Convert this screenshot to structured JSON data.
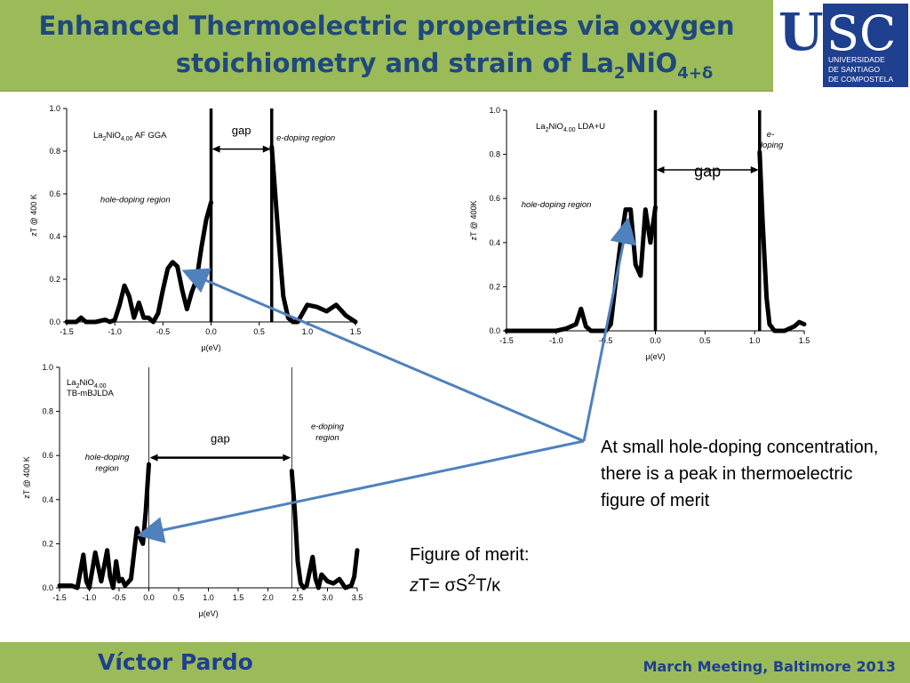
{
  "title": {
    "line1": "Enhanced Thermoelectric properties via oxygen",
    "line2_pre": "stoichiometry and strain of La",
    "line2_sub1": "2",
    "line2_mid": "NiO",
    "line2_sub2": "4+δ"
  },
  "logo": {
    "letters": "USC",
    "line1": "UNIVERSIDADE",
    "line2": "DE SANTIAGO",
    "line3": "DE COMPOSTELA",
    "color": "#1f3f8f"
  },
  "note": "At small hole-doping concentration, there is a peak in thermoelectric figure of merit",
  "figure_of_merit": {
    "label": "Figure of merit:",
    "z": "z",
    "formula_a": "T= σS",
    "sup": "2",
    "formula_b": "T/κ"
  },
  "footer": {
    "author": "Víctor Pardo",
    "event": "March Meeting, Baltimore 2013"
  },
  "colors": {
    "green": "#9bbb59",
    "title_blue": "#1f497d",
    "arrow_blue": "#4f81bd"
  },
  "chart_data": [
    {
      "type": "line",
      "label_formula": "La",
      "label_sub": "2",
      "label_rest": "NiO",
      "label_sub2": "4.00",
      "label_method": "AF GGA",
      "xlabel": "μ(eV)",
      "ylabel": "zT @ 400 K",
      "xlim": [
        -1.5,
        1.5
      ],
      "ylim": [
        0.0,
        1.0
      ],
      "xticks": [
        "-1.5",
        "-1.0",
        "-0.5",
        "0.0",
        "0.5",
        "1.0",
        "1.5"
      ],
      "yticks": [
        "0.0",
        "0.2",
        "0.4",
        "0.6",
        "0.8",
        "1.0"
      ],
      "annotations": {
        "gap": "gap",
        "e": "e-doping region",
        "h": "hole-doping region"
      },
      "gap_edges": [
        0.0,
        0.63
      ],
      "x": [
        -1.5,
        -1.4,
        -1.35,
        -1.3,
        -1.2,
        -1.1,
        -1.05,
        -1.0,
        -0.95,
        -0.9,
        -0.85,
        -0.8,
        -0.75,
        -0.7,
        -0.65,
        -0.6,
        -0.55,
        -0.5,
        -0.45,
        -0.4,
        -0.35,
        -0.3,
        -0.25,
        -0.2,
        -0.15,
        -0.1,
        -0.05,
        0.0,
        0.63,
        0.65,
        0.7,
        0.75,
        0.8,
        0.85,
        0.9,
        1.0,
        1.1,
        1.2,
        1.3,
        1.4,
        1.5
      ],
      "y": [
        0.0,
        0.0,
        0.02,
        0.0,
        0.0,
        0.01,
        0.0,
        0.01,
        0.08,
        0.17,
        0.12,
        0.02,
        0.09,
        0.02,
        0.02,
        0.0,
        0.04,
        0.15,
        0.25,
        0.28,
        0.26,
        0.15,
        0.06,
        0.14,
        0.2,
        0.35,
        0.48,
        0.56,
        0.82,
        0.7,
        0.4,
        0.12,
        0.02,
        0.0,
        0.0,
        0.08,
        0.07,
        0.05,
        0.08,
        0.03,
        0.0
      ]
    },
    {
      "type": "line",
      "label_formula": "La",
      "label_sub": "2",
      "label_rest": "NiO",
      "label_sub2": "4.00",
      "label_method": "LDA+U",
      "xlabel": "μ(eV)",
      "ylabel": "zT @ 400K",
      "xlim": [
        -1.5,
        1.5
      ],
      "ylim": [
        0.0,
        1.0
      ],
      "xticks": [
        "-1.5",
        "-1.0",
        "-0.5",
        "0.0",
        "0.5",
        "1.0",
        "1.5"
      ],
      "yticks": [
        "0.0",
        "0.2",
        "0.4",
        "0.6",
        "0.8",
        "1.0"
      ],
      "annotations": {
        "gap": "gap",
        "e": "e-doping",
        "h": "hole-doping region"
      },
      "gap_edges": [
        0.0,
        1.05
      ],
      "x": [
        -1.5,
        -1.2,
        -1.0,
        -0.9,
        -0.8,
        -0.75,
        -0.7,
        -0.65,
        -0.5,
        -0.45,
        -0.4,
        -0.35,
        -0.3,
        -0.25,
        -0.2,
        -0.15,
        -0.1,
        -0.05,
        0.0,
        1.05,
        1.08,
        1.12,
        1.15,
        1.2,
        1.25,
        1.3,
        1.4,
        1.45,
        1.5
      ],
      "y": [
        0.0,
        0.0,
        0.0,
        0.01,
        0.03,
        0.1,
        0.02,
        0.0,
        0.0,
        0.03,
        0.22,
        0.4,
        0.55,
        0.55,
        0.3,
        0.25,
        0.55,
        0.4,
        0.56,
        0.81,
        0.5,
        0.15,
        0.03,
        0.0,
        0.0,
        0.0,
        0.02,
        0.04,
        0.03
      ]
    },
    {
      "type": "line",
      "label_formula": "La",
      "label_sub": "2",
      "label_rest": "NiO",
      "label_sub2": "4.00",
      "label_method": "TB-mBJLDA",
      "xlabel": "μ(eV)",
      "ylabel": "zT @ 400 K",
      "xlim": [
        -1.5,
        3.5
      ],
      "ylim": [
        0.0,
        1.0
      ],
      "xticks": [
        "-1.5",
        "-1.0",
        "-0.5",
        "0.0",
        "0.5",
        "1.0",
        "1.5",
        "2.0",
        "2.5",
        "3.0",
        "3.5"
      ],
      "yticks": [
        "0.0",
        "0.2",
        "0.4",
        "0.6",
        "0.8",
        "1.0"
      ],
      "annotations": {
        "gap": "gap",
        "e": "e-doping region",
        "h": "hole-doping region"
      },
      "gap_edges": [
        0.0,
        2.4
      ],
      "x": [
        -1.5,
        -1.3,
        -1.2,
        -1.1,
        -1.05,
        -1.0,
        -0.9,
        -0.8,
        -0.75,
        -0.7,
        -0.65,
        -0.6,
        -0.55,
        -0.5,
        -0.45,
        -0.4,
        -0.3,
        -0.2,
        -0.15,
        -0.1,
        -0.05,
        0.0,
        2.4,
        2.45,
        2.5,
        2.55,
        2.6,
        2.65,
        2.75,
        2.8,
        2.85,
        2.9,
        3.0,
        3.1,
        3.2,
        3.3,
        3.4,
        3.45,
        3.5
      ],
      "y": [
        0.01,
        0.01,
        0.0,
        0.15,
        0.03,
        0.0,
        0.16,
        0.03,
        0.1,
        0.17,
        0.05,
        0.0,
        0.12,
        0.03,
        0.04,
        0.01,
        0.04,
        0.27,
        0.23,
        0.2,
        0.35,
        0.56,
        0.53,
        0.35,
        0.12,
        0.02,
        0.0,
        0.01,
        0.14,
        0.04,
        0.0,
        0.06,
        0.03,
        0.02,
        0.04,
        0.0,
        0.01,
        0.05,
        0.17
      ]
    }
  ]
}
